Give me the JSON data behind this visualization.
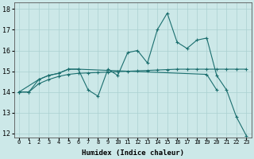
{
  "title": "",
  "xlabel": "Humidex (Indice chaleur)",
  "bg_color": "#cce8e8",
  "line_color": "#1a6e6e",
  "grid_color": "#aad0d0",
  "xlim": [
    -0.5,
    23.5
  ],
  "ylim": [
    11.8,
    18.3
  ],
  "yticks": [
    12,
    13,
    14,
    15,
    16,
    17,
    18
  ],
  "xticks": [
    0,
    1,
    2,
    3,
    4,
    5,
    6,
    7,
    8,
    9,
    10,
    11,
    12,
    13,
    14,
    15,
    16,
    17,
    18,
    19,
    20,
    21,
    22,
    23
  ],
  "lines": [
    {
      "x": [
        0,
        1,
        2,
        3,
        4,
        5,
        6,
        7,
        8,
        9,
        10,
        11,
        12,
        13,
        14,
        15,
        16,
        17,
        18,
        19,
        20,
        21,
        22,
        23
      ],
      "y": [
        14.0,
        14.0,
        14.6,
        14.8,
        14.9,
        15.1,
        15.1,
        14.1,
        13.8,
        15.1,
        14.8,
        15.9,
        16.0,
        15.4,
        17.0,
        17.8,
        16.4,
        16.1,
        16.5,
        16.6,
        14.8,
        14.1,
        12.8,
        11.9
      ]
    },
    {
      "x": [
        0,
        2,
        3,
        4,
        5,
        6,
        19,
        20
      ],
      "y": [
        14.0,
        14.6,
        14.8,
        14.9,
        15.1,
        15.1,
        14.85,
        14.1
      ]
    },
    {
      "x": [
        0,
        1,
        2,
        3,
        4,
        5,
        6,
        7,
        8,
        9,
        10,
        11,
        12,
        13,
        14,
        15,
        16,
        17,
        18,
        19,
        20,
        21,
        22,
        23
      ],
      "y": [
        14.0,
        14.0,
        14.4,
        14.6,
        14.75,
        14.85,
        14.9,
        14.92,
        14.94,
        14.96,
        14.98,
        15.0,
        15.02,
        15.04,
        15.06,
        15.08,
        15.1,
        15.1,
        15.1,
        15.1,
        15.1,
        15.1,
        15.1,
        15.1
      ]
    }
  ]
}
